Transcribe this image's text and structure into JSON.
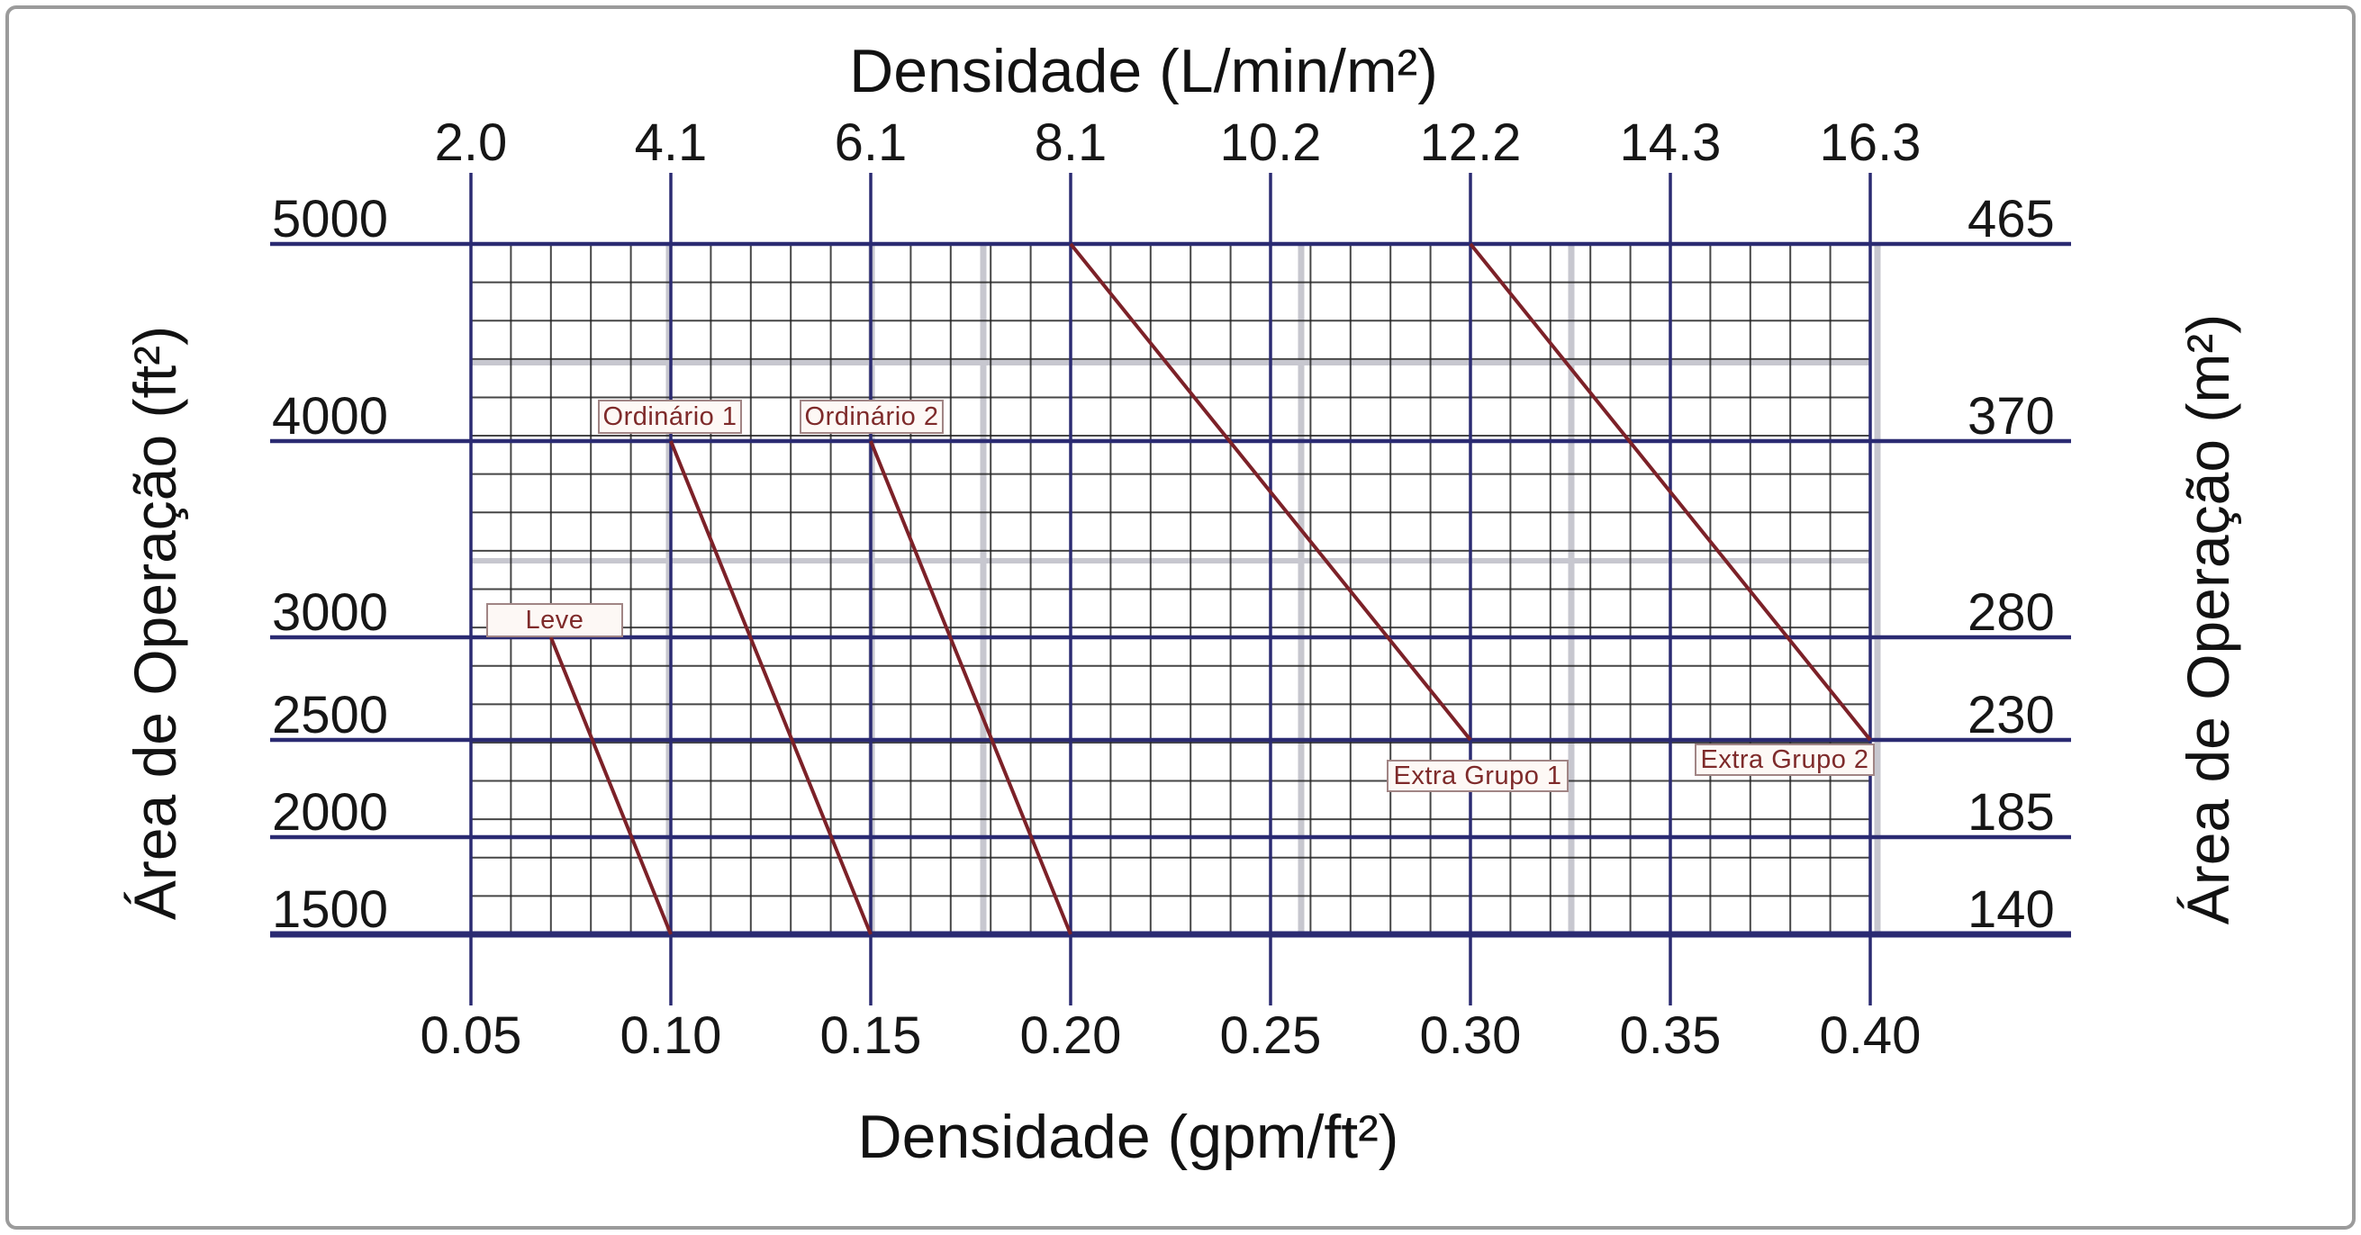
{
  "window": {
    "background": "#ffffff",
    "frame_border_color": "#9b9b9b"
  },
  "chart_data": {
    "type": "line",
    "title_top": "Densidade (L/min/m²)",
    "title_bottom": "Densidade (gpm/ft²)",
    "ylabel_left": "Área de Operação (ft²)",
    "ylabel_right": "Área de Operação (m²)",
    "x_axis": {
      "range": [
        0.05,
        0.4
      ],
      "values": [
        0.05,
        0.1,
        0.15,
        0.2,
        0.25,
        0.3,
        0.35,
        0.4
      ],
      "bottom_ticks": [
        "0.05",
        "0.10",
        "0.15",
        "0.20",
        "0.25",
        "0.30",
        "0.35",
        "0.40"
      ],
      "top_ticks": [
        "2.0",
        "4.1",
        "6.1",
        "8.1",
        "10.2",
        "12.2",
        "14.3",
        "16.3"
      ],
      "unit_bottom": "gpm/ft²",
      "unit_top": "L/min/m²"
    },
    "y_axis": {
      "values": [
        5000,
        4000,
        3000,
        2500,
        2000,
        1500
      ],
      "left_ticks": [
        "5000",
        "4000",
        "3000",
        "2500",
        "2000",
        "1500"
      ],
      "right_ticks": [
        "465",
        "370",
        "280",
        "230",
        "185",
        "140"
      ],
      "unit_left": "ft²",
      "unit_right": "m²"
    },
    "grid": {
      "minor_grid_on": true,
      "major_lines_on": true
    },
    "legend_position": "inline-curve-labels",
    "series": [
      {
        "id": "leve",
        "label": "Leve",
        "points": [
          [
            0.07,
            3000
          ],
          [
            0.1,
            1500
          ]
        ]
      },
      {
        "id": "ordinario1",
        "label": "Ordinário 1",
        "points": [
          [
            0.1,
            4000
          ],
          [
            0.15,
            1500
          ]
        ]
      },
      {
        "id": "ordinario2",
        "label": "Ordinário 2",
        "points": [
          [
            0.15,
            4000
          ],
          [
            0.2,
            1500
          ]
        ]
      },
      {
        "id": "extra_grupo1",
        "label": "Extra Grupo 1",
        "points": [
          [
            0.2,
            5000
          ],
          [
            0.3,
            2500
          ]
        ]
      },
      {
        "id": "extra_grupo2",
        "label": "Extra Grupo 2",
        "points": [
          [
            0.3,
            5000
          ],
          [
            0.4,
            2500
          ]
        ]
      }
    ],
    "colors": {
      "major_line": "#2b2b72",
      "minor_grid": "#262626",
      "curve": "#7c2128",
      "artifact_gray": "#c7c7cf",
      "tick_text": "#161616",
      "curve_label_text": "#7e2a2a",
      "curve_label_bg": "#fdf8f5",
      "curve_label_border": "#a18585"
    }
  }
}
